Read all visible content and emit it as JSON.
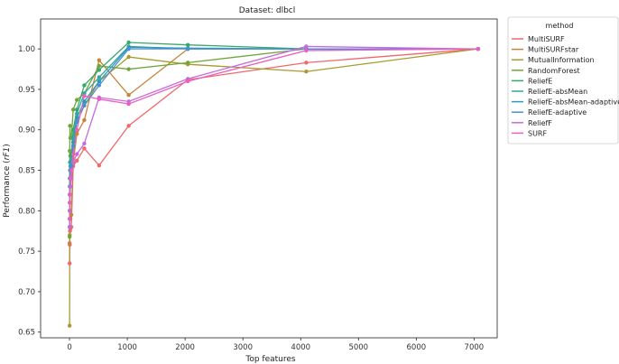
{
  "chart_data": {
    "type": "line",
    "title": "Dataset: dlbcl",
    "xlabel": "Top features",
    "ylabel": "Performance (rF1)",
    "xlim": [
      -500,
      7400
    ],
    "ylim": [
      0.643,
      1.037
    ],
    "xticks": [
      0,
      1000,
      2000,
      3000,
      4000,
      5000,
      6000,
      7000
    ],
    "yticks": [
      0.65,
      0.7,
      0.75,
      0.8,
      0.85,
      0.9,
      0.95,
      1.0
    ],
    "xtick_labels": [
      "0",
      "1000",
      "2000",
      "3000",
      "4000",
      "5000",
      "6000",
      "7000"
    ],
    "ytick_labels": [
      "0.65",
      "0.70",
      "0.75",
      "0.80",
      "0.85",
      "0.90",
      "0.95",
      "1.00"
    ],
    "grid": false,
    "legend_title": "method",
    "legend_position": "outside-right",
    "series": [
      {
        "name": "MultiSURF",
        "color": "#f0686b",
        "x": [
          2,
          4,
          8,
          16,
          32,
          64,
          128,
          256,
          512,
          1024,
          2048,
          4096,
          7070
        ],
        "y": [
          0.735,
          0.758,
          0.775,
          0.778,
          0.78,
          0.855,
          0.862,
          0.877,
          0.856,
          0.905,
          0.962,
          0.983,
          1.0
        ]
      },
      {
        "name": "MultiSURFstar",
        "color": "#c8833a",
        "x": [
          2,
          4,
          8,
          16,
          32,
          64,
          128,
          256,
          512,
          1024,
          2048,
          4096,
          7070
        ],
        "y": [
          0.76,
          0.78,
          0.79,
          0.79,
          0.795,
          0.86,
          0.895,
          0.912,
          0.986,
          0.943,
          1.0,
          1.0,
          1.0
        ]
      },
      {
        "name": "MutualInformation",
        "color": "#a89a2d",
        "x": [
          2,
          4,
          8,
          16,
          32,
          64,
          128,
          256,
          512,
          1024,
          2048,
          4096,
          7070
        ],
        "y": [
          0.658,
          0.77,
          0.8,
          0.83,
          0.85,
          0.88,
          0.91,
          0.93,
          0.96,
          0.99,
          0.981,
          0.972,
          1.0
        ]
      },
      {
        "name": "RandomForest",
        "color": "#6fa63a",
        "x": [
          2,
          4,
          8,
          16,
          32,
          64,
          128,
          256,
          512,
          1024,
          2048,
          4096,
          7070
        ],
        "y": [
          0.768,
          0.874,
          0.905,
          0.89,
          0.89,
          0.925,
          0.937,
          0.945,
          0.979,
          0.975,
          0.983,
          1.0,
          1.0
        ]
      },
      {
        "name": "ReliefE",
        "color": "#36a86a",
        "x": [
          2,
          4,
          8,
          16,
          32,
          64,
          128,
          256,
          512,
          1024,
          2048,
          4096,
          7070
        ],
        "y": [
          0.82,
          0.84,
          0.86,
          0.868,
          0.87,
          0.9,
          0.925,
          0.955,
          0.974,
          1.008,
          1.005,
          1.0,
          1.0
        ]
      },
      {
        "name": "ReliefE-absMean",
        "color": "#33a6a0",
        "x": [
          2,
          4,
          8,
          16,
          32,
          64,
          128,
          256,
          512,
          1024,
          2048,
          4096,
          7070
        ],
        "y": [
          0.8,
          0.83,
          0.85,
          0.86,
          0.86,
          0.89,
          0.92,
          0.945,
          0.965,
          1.003,
          1.0,
          1.0,
          1.0
        ]
      },
      {
        "name": "ReliefE-absMean-adaptive",
        "color": "#2f9ab8",
        "x": [
          2,
          4,
          8,
          16,
          32,
          64,
          128,
          256,
          512,
          1024,
          2048,
          4096,
          7070
        ],
        "y": [
          0.79,
          0.82,
          0.84,
          0.855,
          0.86,
          0.885,
          0.915,
          0.935,
          0.96,
          1.002,
          1.001,
          1.0,
          1.0
        ]
      },
      {
        "name": "ReliefE-adaptive",
        "color": "#4a8fd6",
        "x": [
          2,
          4,
          8,
          16,
          32,
          64,
          128,
          256,
          512,
          1024,
          2048,
          4096,
          7070
        ],
        "y": [
          0.78,
          0.81,
          0.83,
          0.85,
          0.855,
          0.88,
          0.91,
          0.93,
          0.955,
          1.0,
          1.0,
          1.0,
          1.0
        ]
      },
      {
        "name": "ReliefF",
        "color": "#c56be0",
        "x": [
          2,
          4,
          8,
          16,
          32,
          64,
          128,
          256,
          512,
          1024,
          2048,
          4096,
          7070
        ],
        "y": [
          0.78,
          0.8,
          0.82,
          0.83,
          0.84,
          0.86,
          0.87,
          0.883,
          0.94,
          0.935,
          0.963,
          1.003,
          1.0
        ]
      },
      {
        "name": "SURF",
        "color": "#eb5fc0",
        "x": [
          2,
          4,
          8,
          16,
          32,
          64,
          128,
          256,
          512,
          1024,
          2048,
          4096,
          7070
        ],
        "y": [
          0.79,
          0.81,
          0.82,
          0.84,
          0.85,
          0.87,
          0.9,
          0.942,
          0.938,
          0.932,
          0.96,
          0.998,
          1.0
        ]
      }
    ]
  }
}
